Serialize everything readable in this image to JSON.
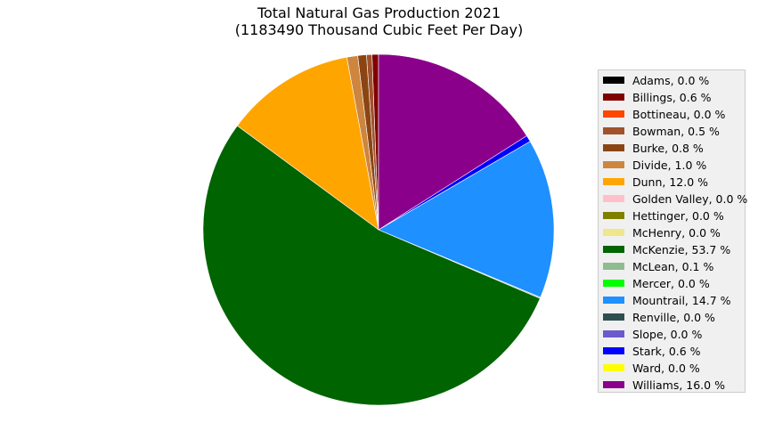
{
  "chart_data": {
    "type": "pie",
    "title": "Total Natural Gas Production 2021",
    "subtitle": "(1183490 Thousand Cubic Feet Per Day)",
    "legend_position": "right",
    "start_angle_deg": 90,
    "direction": "counterclockwise",
    "slices": [
      {
        "label": "Adams, 0.0 %",
        "value": 0.0,
        "color": "#000000"
      },
      {
        "label": "Billings, 0.6 %",
        "value": 0.6,
        "color": "#800000"
      },
      {
        "label": "Bottineau, 0.0 %",
        "value": 0.0,
        "color": "#ff4500"
      },
      {
        "label": "Bowman, 0.5 %",
        "value": 0.5,
        "color": "#a0522d"
      },
      {
        "label": "Burke, 0.8 %",
        "value": 0.8,
        "color": "#8b4513"
      },
      {
        "label": "Divide, 1.0 %",
        "value": 1.0,
        "color": "#cd853f"
      },
      {
        "label": "Dunn, 12.0 %",
        "value": 12.0,
        "color": "#ffa500"
      },
      {
        "label": "Golden Valley, 0.0 %",
        "value": 0.0,
        "color": "#ffc0cb"
      },
      {
        "label": "Hettinger, 0.0 %",
        "value": 0.0,
        "color": "#808000"
      },
      {
        "label": "McHenry, 0.0 %",
        "value": 0.0,
        "color": "#f0e68c"
      },
      {
        "label": "McKenzie, 53.7 %",
        "value": 53.7,
        "color": "#006400"
      },
      {
        "label": "McLean, 0.1 %",
        "value": 0.1,
        "color": "#8fbc8f"
      },
      {
        "label": "Mercer, 0.0 %",
        "value": 0.0,
        "color": "#00ff00"
      },
      {
        "label": "Mountrail, 14.7 %",
        "value": 14.7,
        "color": "#1e90ff"
      },
      {
        "label": "Renville, 0.0 %",
        "value": 0.0,
        "color": "#2f4f4f"
      },
      {
        "label": "Slope, 0.0 %",
        "value": 0.0,
        "color": "#6a5acd"
      },
      {
        "label": "Stark, 0.6 %",
        "value": 0.6,
        "color": "#0000ff"
      },
      {
        "label": "Ward, 0.0 %",
        "value": 0.0,
        "color": "#ffff00"
      },
      {
        "label": "Williams, 16.0 %",
        "value": 16.0,
        "color": "#8b008b"
      }
    ]
  }
}
